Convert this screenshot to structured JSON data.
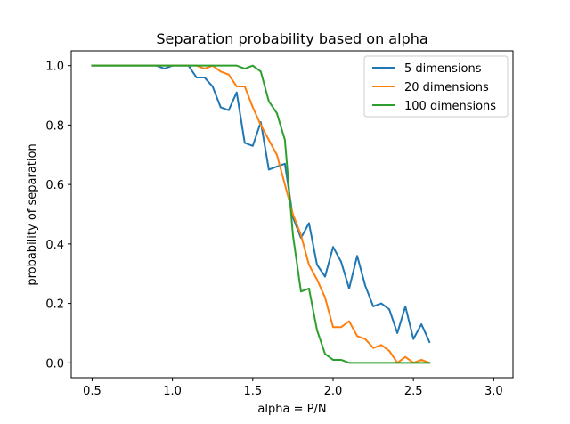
{
  "chart_data": {
    "type": "line",
    "title": "Separation probability based on alpha",
    "xlabel": "alpha = P/N",
    "ylabel": "probability of separation",
    "xlim": [
      0.37,
      3.12
    ],
    "ylim": [
      -0.05,
      1.05
    ],
    "xticks": [
      0.5,
      1.0,
      1.5,
      2.0,
      2.5,
      3.0
    ],
    "xtick_labels": [
      "0.5",
      "1.0",
      "1.5",
      "2.0",
      "2.5",
      "3.0"
    ],
    "yticks": [
      0.0,
      0.2,
      0.4,
      0.6,
      0.8,
      1.0
    ],
    "ytick_labels": [
      "0.0",
      "0.2",
      "0.4",
      "0.6",
      "0.8",
      "1.0"
    ],
    "grid": false,
    "legend_position": "top-right",
    "x": [
      0.5,
      0.55,
      0.6,
      0.65,
      0.7,
      0.75,
      0.8,
      0.85,
      0.9,
      0.95,
      1.0,
      1.05,
      1.1,
      1.15,
      1.2,
      1.25,
      1.3,
      1.35,
      1.4,
      1.45,
      1.5,
      1.55,
      1.6,
      1.65,
      1.7,
      1.75,
      1.8,
      1.85,
      1.9,
      1.95,
      2.0,
      2.05,
      2.1,
      2.15,
      2.2,
      2.25,
      2.3,
      2.35,
      2.4,
      2.45,
      2.5,
      2.55,
      2.6,
      2.65,
      2.7,
      2.75,
      2.8,
      2.85,
      2.9,
      2.95,
      3.0
    ],
    "series": [
      {
        "name": "5 dimensions",
        "color": "#1f77b4",
        "values": [
          1.0,
          1.0,
          1.0,
          1.0,
          1.0,
          1.0,
          1.0,
          1.0,
          1.0,
          0.99,
          1.0,
          1.0,
          1.0,
          0.96,
          0.96,
          0.93,
          0.86,
          0.85,
          0.91,
          0.74,
          0.73,
          0.81,
          0.65,
          0.66,
          0.67,
          0.49,
          0.42,
          0.47,
          0.33,
          0.29,
          0.39,
          0.34,
          0.25,
          0.36,
          0.26,
          0.19,
          0.2,
          0.18,
          0.1,
          0.19,
          0.08,
          0.13,
          0.07,
          null,
          null,
          null,
          null,
          null,
          null,
          null,
          null
        ]
      },
      {
        "name": "20 dimensions",
        "color": "#ff7f0e",
        "values": [
          1.0,
          1.0,
          1.0,
          1.0,
          1.0,
          1.0,
          1.0,
          1.0,
          1.0,
          1.0,
          1.0,
          1.0,
          1.0,
          1.0,
          0.99,
          1.0,
          0.98,
          0.97,
          0.93,
          0.93,
          0.86,
          0.8,
          0.75,
          0.7,
          0.6,
          0.5,
          0.43,
          0.33,
          0.28,
          0.22,
          0.12,
          0.12,
          0.14,
          0.09,
          0.08,
          0.05,
          0.06,
          0.04,
          0.0,
          0.02,
          0.0,
          0.01,
          0.0,
          null,
          null,
          null,
          null,
          null,
          null,
          null,
          null
        ]
      },
      {
        "name": "100 dimensions",
        "color": "#2ca02c",
        "values": [
          1.0,
          1.0,
          1.0,
          1.0,
          1.0,
          1.0,
          1.0,
          1.0,
          1.0,
          1.0,
          1.0,
          1.0,
          1.0,
          1.0,
          1.0,
          1.0,
          1.0,
          1.0,
          1.0,
          0.99,
          1.0,
          0.98,
          0.88,
          0.84,
          0.75,
          0.43,
          0.24,
          0.25,
          0.11,
          0.03,
          0.01,
          0.01,
          0.0,
          0.0,
          0.0,
          0.0,
          0.0,
          0.0,
          0.0,
          0.0,
          0.0,
          0.0,
          0.0,
          null,
          null,
          null,
          null,
          null,
          null,
          null,
          null
        ]
      }
    ]
  }
}
